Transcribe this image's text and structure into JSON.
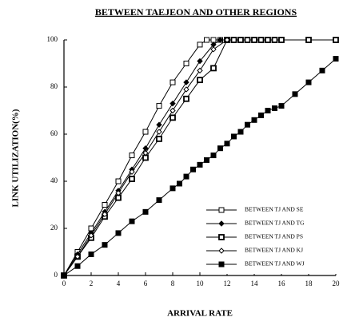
{
  "chart_data": {
    "type": "line",
    "title": "BETWEEN TAEJEON AND OTHER REGIONS",
    "xlabel": "ARRIVAL RATE",
    "ylabel": "LINK UTILIZATION(%)",
    "xlim": [
      0,
      20
    ],
    "ylim": [
      0,
      100
    ],
    "xticks": [
      0,
      2,
      4,
      6,
      8,
      10,
      12,
      14,
      16,
      18,
      20
    ],
    "yticks": [
      0,
      20,
      40,
      60,
      80,
      100
    ],
    "legend": "lower right",
    "series": [
      {
        "name": "BETWEEN TJ AND SE",
        "color": "#000000",
        "marker": "square-open",
        "x": [
          0,
          1,
          2,
          3,
          4,
          5,
          6,
          7,
          8,
          9,
          10,
          10.5,
          11,
          11.5
        ],
        "values": [
          0,
          10,
          20,
          30,
          40,
          51,
          61,
          72,
          82,
          90,
          98,
          100,
          100,
          100
        ]
      },
      {
        "name": "BETWEEN TJ AND TG",
        "color": "#000000",
        "marker": "diamond-filled",
        "x": [
          0,
          1,
          2,
          3,
          4,
          5,
          6,
          7,
          8,
          9,
          10,
          11,
          11.5,
          12
        ],
        "values": [
          0,
          9,
          18,
          27,
          36,
          45,
          54,
          64,
          73,
          82,
          91,
          98,
          100,
          100
        ]
      },
      {
        "name": "BETWEEN TJ AND PS",
        "color": "#000000",
        "marker": "square-bold",
        "x": [
          0,
          1,
          2,
          3,
          4,
          5,
          6,
          7,
          8,
          9,
          10,
          11,
          12,
          12.5,
          13,
          13.5,
          14,
          14.5,
          15,
          15.5,
          16,
          18,
          20
        ],
        "values": [
          0,
          8,
          16,
          25,
          33,
          41,
          50,
          58,
          67,
          75,
          83,
          88,
          100,
          100,
          100,
          100,
          100,
          100,
          100,
          100,
          100,
          100,
          100
        ]
      },
      {
        "name": "BETWEEN TJ AND KJ",
        "color": "#000000",
        "marker": "diamond-open",
        "x": [
          0,
          1,
          2,
          3,
          4,
          5,
          6,
          7,
          8,
          9,
          10,
          11,
          12
        ],
        "values": [
          0,
          8,
          17,
          26,
          35,
          44,
          52,
          61,
          70,
          79,
          87,
          96,
          100
        ]
      },
      {
        "name": "BETWEEN TJ AND WJ",
        "color": "#000000",
        "marker": "square-filled",
        "x": [
          0,
          1,
          2,
          3,
          4,
          5,
          6,
          7,
          8,
          8.5,
          9,
          9.5,
          10,
          10.5,
          11,
          11.5,
          12,
          12.5,
          13,
          13.5,
          14,
          14.5,
          15,
          15.5,
          16,
          17,
          18,
          19,
          20
        ],
        "values": [
          0,
          4,
          9,
          13,
          18,
          23,
          27,
          32,
          37,
          39,
          42,
          45,
          47,
          49,
          51,
          54,
          56,
          59,
          61,
          64,
          66,
          68,
          70,
          71,
          72,
          77,
          82,
          87,
          92
        ]
      }
    ]
  }
}
